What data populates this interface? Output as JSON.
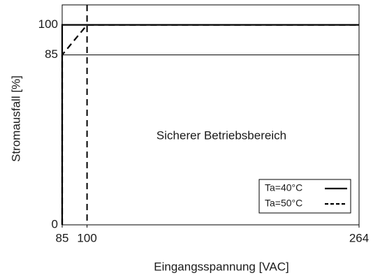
{
  "chart_data": {
    "type": "line",
    "xlabel": "Eingangsspannung [VAC]",
    "ylabel": "Stromausfall [%]",
    "annotation": "Sicherer Betriebsbereich",
    "series": [
      {
        "name": "Ta=40°C",
        "color": "#000000",
        "dash": "solid",
        "x": [
          85,
          85,
          264
        ],
        "values": [
          0,
          100,
          100
        ]
      },
      {
        "name": "Ta=50°C",
        "color": "#000000",
        "dash": "dashed",
        "x": [
          85,
          85,
          100,
          264
        ],
        "values": [
          0,
          85,
          100,
          100
        ]
      }
    ],
    "xlim": [
      85,
      264
    ],
    "xticks": [
      85,
      100,
      264
    ],
    "ylim": [
      0,
      110
    ],
    "yticks": [
      0,
      85,
      100
    ],
    "grid": true,
    "vlines": [
      100
    ],
    "legend": "lower right"
  }
}
